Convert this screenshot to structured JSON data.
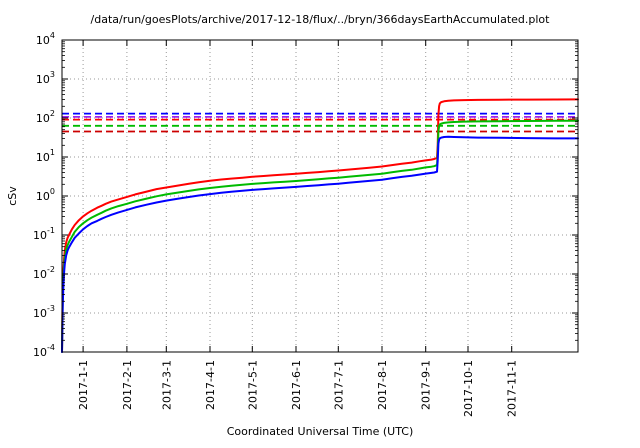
{
  "title": "/data/run/goesPlots/archive/2017-12-18/flux/../bryn/366daysEarthAccumulated.plot",
  "chart_data": {
    "type": "line",
    "title": "/data/run/goesPlots/archive/2017-12-18/flux/../bryn/366daysEarthAccumulated.plot",
    "xlabel": "Coordinated Universal Time (UTC)",
    "ylabel": "cSv",
    "y_scale": "log",
    "ylim": [
      0.0001,
      10000
    ],
    "y_ticks_exponents": [
      -4,
      -3,
      -2,
      -1,
      0,
      1,
      2,
      3,
      4
    ],
    "x_domain_days": [
      0,
      366
    ],
    "grid": true,
    "x_ticks": [
      {
        "day": 15,
        "label": "2017-1-1"
      },
      {
        "day": 46,
        "label": "2017-2-1"
      },
      {
        "day": 74,
        "label": "2017-3-1"
      },
      {
        "day": 105,
        "label": "2017-4-1"
      },
      {
        "day": 135,
        "label": "2017-5-1"
      },
      {
        "day": 166,
        "label": "2017-6-1"
      },
      {
        "day": 196,
        "label": "2017-7-1"
      },
      {
        "day": 227,
        "label": "2017-8-1"
      },
      {
        "day": 258,
        "label": "2017-9-1"
      },
      {
        "day": 288,
        "label": "2017-10-1"
      },
      {
        "day": 319,
        "label": "2017-11-1"
      }
    ],
    "limit_lines": [
      {
        "name": "blue-limit",
        "color": "#0000ff",
        "value": 130,
        "style": "dashed"
      },
      {
        "name": "purple-limit",
        "color": "#a020f0",
        "value": 107,
        "style": "dashed"
      },
      {
        "name": "red-limit",
        "color": "#ff0000",
        "value": 91,
        "style": "dashed"
      },
      {
        "name": "green-limit",
        "color": "#00bb00",
        "value": 63,
        "style": "dashed"
      },
      {
        "name": "darkred-limit",
        "color": "#cc0000",
        "value": 45,
        "style": "dashed"
      }
    ],
    "series": [
      {
        "name": "red",
        "color": "#ff0000",
        "points": [
          [
            0,
            0.0001
          ],
          [
            0.3,
            0.001
          ],
          [
            0.6,
            0.004
          ],
          [
            1,
            0.012
          ],
          [
            1.5,
            0.025
          ],
          [
            2,
            0.04
          ],
          [
            3,
            0.065
          ],
          [
            4,
            0.085
          ],
          [
            5,
            0.1
          ],
          [
            7,
            0.14
          ],
          [
            9,
            0.18
          ],
          [
            12,
            0.24
          ],
          [
            15,
            0.3
          ],
          [
            18,
            0.36
          ],
          [
            21,
            0.42
          ],
          [
            25,
            0.5
          ],
          [
            28,
            0.56
          ],
          [
            31,
            0.63
          ],
          [
            35,
            0.72
          ],
          [
            40,
            0.82
          ],
          [
            46,
            0.95
          ],
          [
            52,
            1.1
          ],
          [
            60,
            1.3
          ],
          [
            67,
            1.5
          ],
          [
            74,
            1.65
          ],
          [
            82,
            1.85
          ],
          [
            90,
            2.05
          ],
          [
            97,
            2.25
          ],
          [
            105,
            2.45
          ],
          [
            113,
            2.65
          ],
          [
            120,
            2.8
          ],
          [
            128,
            2.95
          ],
          [
            135,
            3.1
          ],
          [
            143,
            3.25
          ],
          [
            150,
            3.4
          ],
          [
            158,
            3.55
          ],
          [
            166,
            3.7
          ],
          [
            174,
            3.9
          ],
          [
            182,
            4.1
          ],
          [
            189,
            4.3
          ],
          [
            196,
            4.5
          ],
          [
            203,
            4.75
          ],
          [
            210,
            5.0
          ],
          [
            218,
            5.3
          ],
          [
            227,
            5.7
          ],
          [
            234,
            6.2
          ],
          [
            241,
            6.7
          ],
          [
            248,
            7.2
          ],
          [
            254,
            7.8
          ],
          [
            258,
            8.2
          ],
          [
            262,
            8.6
          ],
          [
            264,
            8.9
          ],
          [
            266,
            9.5
          ],
          [
            266.5,
            20
          ],
          [
            267,
            120
          ],
          [
            267.5,
            200
          ],
          [
            268,
            235
          ],
          [
            269,
            255
          ],
          [
            271,
            268
          ],
          [
            274,
            276
          ],
          [
            278,
            282
          ],
          [
            285,
            287
          ],
          [
            295,
            291
          ],
          [
            310,
            294
          ],
          [
            330,
            296
          ],
          [
            350,
            298
          ],
          [
            366,
            299
          ]
        ]
      },
      {
        "name": "green",
        "color": "#00bb00",
        "points": [
          [
            0,
            0.0001
          ],
          [
            0.3,
            0.0007
          ],
          [
            0.6,
            0.0025
          ],
          [
            1,
            0.008
          ],
          [
            1.5,
            0.016
          ],
          [
            2,
            0.026
          ],
          [
            3,
            0.042
          ],
          [
            4,
            0.055
          ],
          [
            5,
            0.066
          ],
          [
            7,
            0.09
          ],
          [
            9,
            0.12
          ],
          [
            12,
            0.16
          ],
          [
            15,
            0.2
          ],
          [
            18,
            0.24
          ],
          [
            21,
            0.28
          ],
          [
            25,
            0.33
          ],
          [
            28,
            0.37
          ],
          [
            31,
            0.42
          ],
          [
            35,
            0.48
          ],
          [
            40,
            0.55
          ],
          [
            46,
            0.63
          ],
          [
            52,
            0.73
          ],
          [
            60,
            0.86
          ],
          [
            67,
            0.98
          ],
          [
            74,
            1.1
          ],
          [
            82,
            1.22
          ],
          [
            90,
            1.35
          ],
          [
            97,
            1.48
          ],
          [
            105,
            1.6
          ],
          [
            113,
            1.73
          ],
          [
            120,
            1.84
          ],
          [
            128,
            1.94
          ],
          [
            135,
            2.04
          ],
          [
            143,
            2.14
          ],
          [
            150,
            2.23
          ],
          [
            158,
            2.33
          ],
          [
            166,
            2.43
          ],
          [
            174,
            2.56
          ],
          [
            182,
            2.69
          ],
          [
            189,
            2.82
          ],
          [
            196,
            2.95
          ],
          [
            203,
            3.1
          ],
          [
            210,
            3.27
          ],
          [
            218,
            3.47
          ],
          [
            227,
            3.73
          ],
          [
            234,
            4.05
          ],
          [
            241,
            4.4
          ],
          [
            248,
            4.7
          ],
          [
            254,
            5.1
          ],
          [
            258,
            5.4
          ],
          [
            262,
            5.65
          ],
          [
            264,
            5.8
          ],
          [
            266,
            6.2
          ],
          [
            266.5,
            12
          ],
          [
            267,
            45
          ],
          [
            267.5,
            62
          ],
          [
            268,
            68
          ],
          [
            269,
            72
          ],
          [
            271,
            75
          ],
          [
            274,
            77
          ],
          [
            278,
            79
          ],
          [
            285,
            81
          ],
          [
            295,
            82
          ],
          [
            310,
            83
          ],
          [
            330,
            84
          ],
          [
            350,
            85
          ],
          [
            366,
            85
          ]
        ]
      },
      {
        "name": "blue",
        "color": "#0000ff",
        "points": [
          [
            0,
            0.0001
          ],
          [
            0.3,
            0.0005
          ],
          [
            0.6,
            0.0018
          ],
          [
            1,
            0.005
          ],
          [
            1.5,
            0.011
          ],
          [
            2,
            0.018
          ],
          [
            3,
            0.03
          ],
          [
            4,
            0.04
          ],
          [
            5,
            0.048
          ],
          [
            7,
            0.065
          ],
          [
            9,
            0.085
          ],
          [
            12,
            0.11
          ],
          [
            15,
            0.14
          ],
          [
            18,
            0.17
          ],
          [
            21,
            0.2
          ],
          [
            25,
            0.23
          ],
          [
            28,
            0.26
          ],
          [
            31,
            0.29
          ],
          [
            35,
            0.33
          ],
          [
            40,
            0.38
          ],
          [
            46,
            0.44
          ],
          [
            52,
            0.51
          ],
          [
            60,
            0.6
          ],
          [
            67,
            0.68
          ],
          [
            74,
            0.76
          ],
          [
            82,
            0.85
          ],
          [
            90,
            0.94
          ],
          [
            97,
            1.03
          ],
          [
            105,
            1.12
          ],
          [
            113,
            1.21
          ],
          [
            120,
            1.29
          ],
          [
            128,
            1.36
          ],
          [
            135,
            1.43
          ],
          [
            143,
            1.5
          ],
          [
            150,
            1.57
          ],
          [
            158,
            1.64
          ],
          [
            166,
            1.71
          ],
          [
            174,
            1.8
          ],
          [
            182,
            1.89
          ],
          [
            189,
            1.98
          ],
          [
            196,
            2.07
          ],
          [
            203,
            2.18
          ],
          [
            210,
            2.3
          ],
          [
            218,
            2.44
          ],
          [
            227,
            2.62
          ],
          [
            234,
            2.84
          ],
          [
            241,
            3.08
          ],
          [
            248,
            3.3
          ],
          [
            254,
            3.55
          ],
          [
            258,
            3.75
          ],
          [
            262,
            3.92
          ],
          [
            264,
            4.0
          ],
          [
            266,
            4.2
          ],
          [
            266.5,
            8
          ],
          [
            267,
            22
          ],
          [
            267.5,
            28
          ],
          [
            268,
            30
          ],
          [
            269,
            31.5
          ],
          [
            271,
            32.5
          ],
          [
            274,
            33
          ],
          [
            278,
            32.5
          ],
          [
            285,
            32
          ],
          [
            295,
            31.5
          ],
          [
            310,
            31
          ],
          [
            330,
            30.5
          ],
          [
            350,
            30
          ],
          [
            366,
            30
          ]
        ]
      }
    ],
    "colors": {
      "grid": "#9a9a9a",
      "axis": "#000000",
      "background": "#ffffff"
    }
  }
}
